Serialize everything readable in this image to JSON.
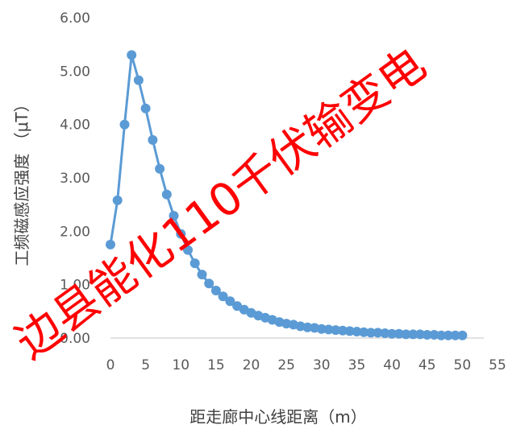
{
  "colors": {
    "series": "#5b9bd5",
    "axis": "#d9d9d9",
    "tick_text": "#595959",
    "watermark": "#ff0000"
  },
  "chart_data": {
    "type": "scatter",
    "title": "",
    "xlabel": "距走廊中心线距离（m）",
    "ylabel": "工频磁感应强度 （μT）",
    "xlim": [
      0,
      55
    ],
    "ylim": [
      0,
      6
    ],
    "x_ticks": [
      "0",
      "5",
      "10",
      "15",
      "20",
      "25",
      "30",
      "35",
      "40",
      "45",
      "50",
      "55"
    ],
    "y_ticks": [
      "0.00",
      "1.00",
      "2.00",
      "3.00",
      "4.00",
      "5.00",
      "6.00"
    ],
    "grid": false,
    "legend": "none",
    "series": [
      {
        "style": "line-with-markers",
        "x": [
          0,
          1,
          2,
          3,
          4,
          5,
          6,
          7,
          8,
          9,
          10,
          11,
          12,
          13,
          14,
          15,
          16,
          17,
          18,
          19,
          20,
          21,
          22,
          23,
          24,
          25,
          26,
          27,
          28,
          29,
          30,
          31,
          32,
          33,
          34,
          35,
          36,
          37,
          38,
          39,
          40,
          41,
          42,
          43,
          44,
          45,
          46,
          47,
          48,
          49,
          50
        ],
        "y": [
          1.75,
          2.58,
          4.0,
          5.3,
          4.83,
          4.3,
          3.71,
          3.17,
          2.69,
          2.29,
          1.95,
          1.65,
          1.4,
          1.19,
          1.02,
          0.89,
          0.78,
          0.69,
          0.6,
          0.53,
          0.47,
          0.42,
          0.38,
          0.34,
          0.3,
          0.27,
          0.25,
          0.22,
          0.2,
          0.19,
          0.17,
          0.16,
          0.15,
          0.14,
          0.13,
          0.12,
          0.11,
          0.1,
          0.1,
          0.09,
          0.08,
          0.08,
          0.07,
          0.07,
          0.07,
          0.06,
          0.06,
          0.05,
          0.05,
          0.05,
          0.05
        ]
      }
    ]
  },
  "watermark": {
    "text": "边县能化110千伏输变电"
  }
}
